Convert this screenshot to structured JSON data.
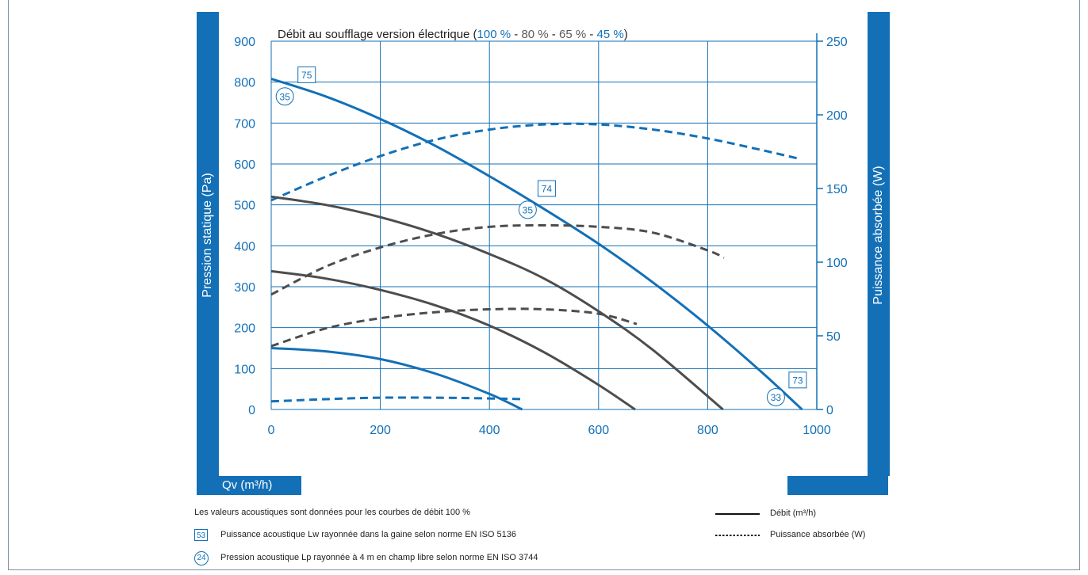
{
  "chart_data": {
    "type": "line",
    "title_prefix": "Débit au soufflage version électrique (",
    "title_parts": [
      {
        "text": "100 %",
        "color": "#1370b7"
      },
      {
        "text": " - ",
        "color": "#222222"
      },
      {
        "text": "80 %",
        "color": "#5a5a5a"
      },
      {
        "text": " - ",
        "color": "#222222"
      },
      {
        "text": "65 %",
        "color": "#5a5a5a"
      },
      {
        "text": " - ",
        "color": "#222222"
      },
      {
        "text": "45 %",
        "color": "#1370b7"
      }
    ],
    "title_suffix": ")",
    "ylabel": "Pression statique (Pa)",
    "y2label": "Puissance absorbée (W)",
    "xlabel": "Qv (m³/h)",
    "xlim": [
      0,
      1000
    ],
    "ylim": [
      0,
      900
    ],
    "y2lim": [
      0,
      250
    ],
    "xticks": [
      0,
      200,
      400,
      600,
      800,
      1000
    ],
    "yticks": [
      0,
      100,
      200,
      300,
      400,
      500,
      600,
      700,
      800,
      900
    ],
    "y2ticks": [
      0,
      50,
      100,
      150,
      200,
      250
    ],
    "grid": true,
    "series": [
      {
        "level": "100 %",
        "kind": "debit",
        "axis": "left",
        "color": "#1370b7",
        "x": [
          0,
          100,
          200,
          300,
          400,
          500,
          600,
          700,
          800,
          900,
          973
        ],
        "y": [
          808,
          765,
          710,
          645,
          570,
          490,
          405,
          310,
          205,
          90,
          0
        ]
      },
      {
        "level": "100 %",
        "kind": "puissance",
        "axis": "right",
        "color": "#1370b7",
        "x": [
          0,
          100,
          200,
          300,
          400,
          500,
          600,
          700,
          800,
          900,
          970
        ],
        "y": [
          142,
          158,
          172,
          183,
          190,
          193.5,
          193.5,
          190,
          184,
          176,
          170
        ]
      },
      {
        "level": "80 %",
        "kind": "debit",
        "axis": "left",
        "color": "#4d4d4d",
        "x": [
          0,
          100,
          200,
          300,
          400,
          500,
          600,
          700,
          828
        ],
        "y": [
          520,
          500,
          470,
          430,
          380,
          320,
          240,
          145,
          0
        ]
      },
      {
        "level": "80 %",
        "kind": "puissance",
        "axis": "right",
        "color": "#4d4d4d",
        "x": [
          0,
          100,
          200,
          300,
          400,
          500,
          600,
          700,
          800,
          830
        ],
        "y": [
          78,
          97,
          110,
          119,
          124,
          125,
          124,
          120,
          108,
          103
        ]
      },
      {
        "level": "65 %",
        "kind": "debit",
        "axis": "left",
        "color": "#4d4d4d",
        "x": [
          0,
          100,
          200,
          300,
          400,
          500,
          600,
          667
        ],
        "y": [
          338,
          320,
          292,
          255,
          205,
          140,
          60,
          0
        ]
      },
      {
        "level": "65 %",
        "kind": "puissance",
        "axis": "right",
        "color": "#4d4d4d",
        "x": [
          0,
          100,
          200,
          300,
          400,
          500,
          600,
          670
        ],
        "y": [
          43,
          55,
          62,
          66,
          68,
          68,
          65,
          58
        ]
      },
      {
        "level": "45 %",
        "kind": "debit",
        "axis": "left",
        "color": "#1370b7",
        "x": [
          0,
          100,
          200,
          300,
          400,
          460
        ],
        "y": [
          150,
          142,
          123,
          88,
          38,
          0
        ]
      },
      {
        "level": "45 %",
        "kind": "puissance",
        "axis": "right",
        "color": "#1370b7",
        "x": [
          0,
          100,
          200,
          300,
          400,
          465
        ],
        "y": [
          5.5,
          7,
          8,
          8,
          7.5,
          7
        ]
      }
    ],
    "annotations": [
      {
        "shape": "box",
        "text": "75",
        "x": 65,
        "y": 818
      },
      {
        "shape": "circle",
        "text": "35",
        "x": 25,
        "y": 765
      },
      {
        "shape": "box",
        "text": "74",
        "x": 505,
        "y": 540
      },
      {
        "shape": "circle",
        "text": "35",
        "x": 470,
        "y": 488
      },
      {
        "shape": "box",
        "text": "73",
        "x": 965,
        "y": 72
      },
      {
        "shape": "circle",
        "text": "33",
        "x": 925,
        "y": 30
      }
    ]
  },
  "notes": {
    "acoustic": "Les valeurs acoustiques sont données pour les courbes de débit 100 %",
    "lw_symbol": "53",
    "lw": "Puissance acoustique Lw rayonnée dans la gaine selon norme EN ISO 5136",
    "lp_symbol": "24",
    "lp": "Pression acoustique Lp rayonnée à 4 m en champ libre selon norme EN ISO 3744"
  },
  "legend": {
    "solid": "Débit (m³/h)",
    "dotted": "Puissance absorbée (W)"
  },
  "colors": {
    "accent": "#1370b7",
    "gray": "#4d4d4d",
    "grid": "#1370b7"
  }
}
